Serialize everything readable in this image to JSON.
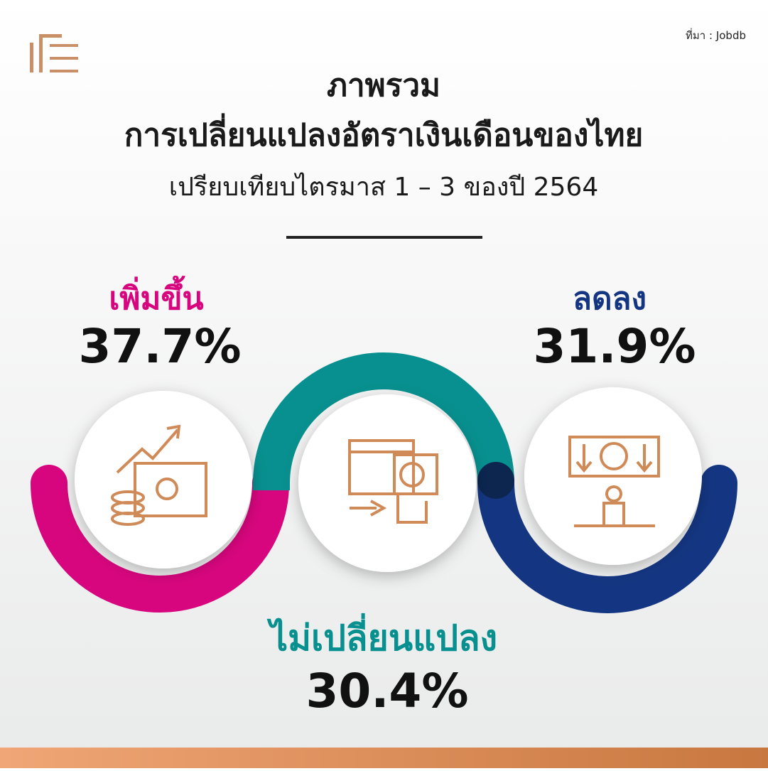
{
  "source": "ที่มา : Jobdb",
  "title": {
    "line1": "ภาพรวม",
    "line2": "การเปลี่ยนแปลงอัตราเงินเดือนของไทย",
    "subtitle": "เปรียบเทียบไตรมาส 1 – 3 ของปี 2564"
  },
  "items": [
    {
      "label": "เพิ่มขึ้น",
      "value": "37.7%"
    },
    {
      "label": "ลดลง",
      "value": "31.9%"
    },
    {
      "label": "ไม่เปลี่ยนแปลง",
      "value": "30.4%"
    }
  ]
}
